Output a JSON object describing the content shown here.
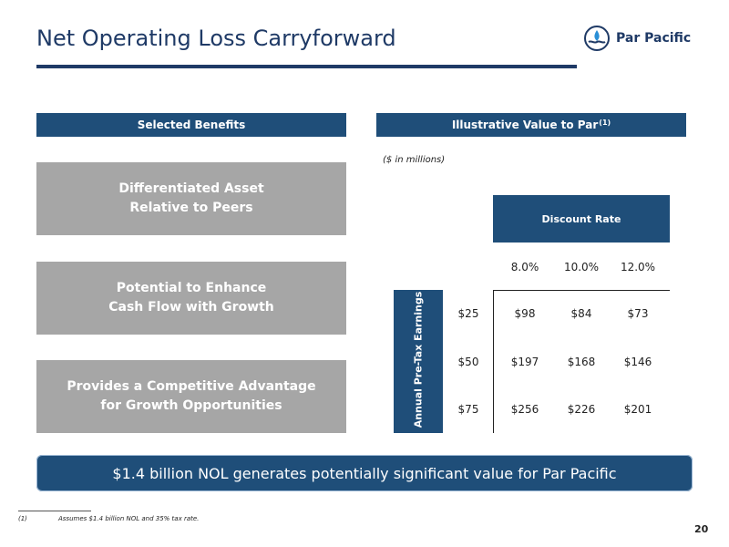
{
  "title": "Net Operating Loss Carryforward",
  "logo": {
    "name": "Par Pacific",
    "icon": "par-pacific-logo-icon"
  },
  "left_header": "Selected Benefits",
  "right_header": {
    "text": "Illustrative Value to Par",
    "superscript": "(1)"
  },
  "benefits": [
    {
      "line1": "Differentiated Asset",
      "line2": "Relative to Peers"
    },
    {
      "line1": "Potential to Enhance",
      "line2": "Cash Flow with Growth"
    },
    {
      "line1": "Provides a Competitive Advantage",
      "line2": "for Growth Opportunities"
    }
  ],
  "units_note": "($ in millions)",
  "table": {
    "column_group": "Discount Rate",
    "row_group": "Annual Pre-Tax Earnings",
    "columns": [
      "8.0%",
      "10.0%",
      "12.0%"
    ],
    "rows": [
      {
        "label": "$25",
        "values": [
          "$98",
          "$84",
          "$73"
        ]
      },
      {
        "label": "$50",
        "values": [
          "$197",
          "$168",
          "$146"
        ]
      },
      {
        "label": "$75",
        "values": [
          "$256",
          "$226",
          "$201"
        ]
      }
    ]
  },
  "callout": "$1.4 billion NOL generates potentially significant value for Par Pacific",
  "footnote": {
    "marker": "(1)",
    "text": "Assumes $1.4 billion NOL and 35% tax rate."
  },
  "page_number": "20",
  "colors": {
    "navy": "#1f4e79",
    "title_blue": "#1f3a66",
    "grey_box": "#a6a6a6"
  }
}
